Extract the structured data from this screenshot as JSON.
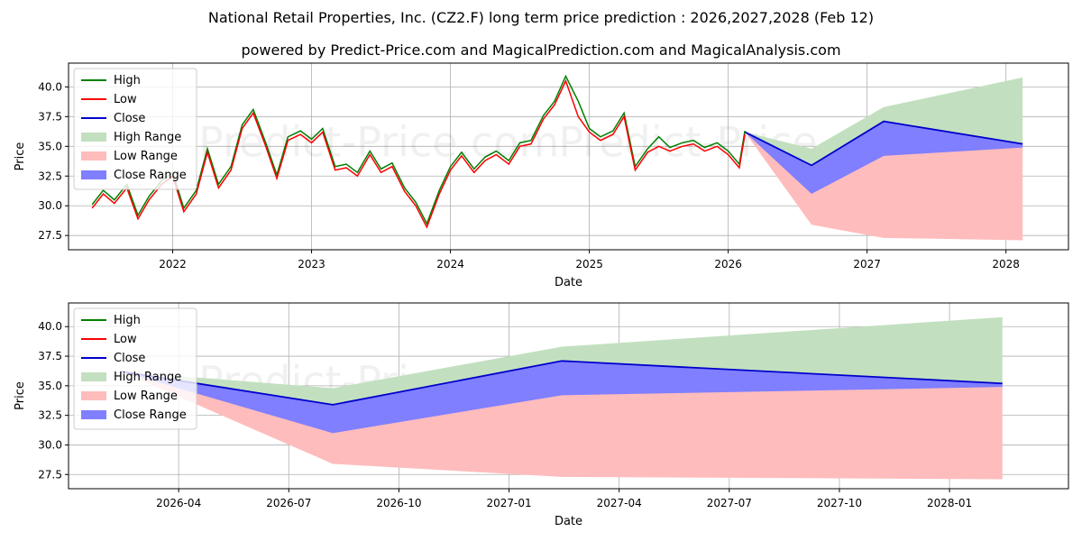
{
  "title": "National Retail Properties, Inc. (CZ2.F) long term price prediction : 2026,2027,2028 (Feb 12)",
  "subtitle": "powered by Predict-Price.com and MagicalPrediction.com and MagicalAnalysis.com",
  "watermark": "Predict-Price.com",
  "colors": {
    "high": "#008000",
    "low": "#ff0000",
    "close": "#0000cc",
    "high_range": "#c2e0bf",
    "low_range": "#ffbcbc",
    "close_range": "#7f7fff",
    "grid": "#b0b0b0"
  },
  "chart_data": [
    {
      "type": "line",
      "name": "top",
      "xlabel": "Date",
      "ylabel": "Price",
      "xlim": [
        2021.25,
        2028.45
      ],
      "ylim": [
        26.3,
        42.0
      ],
      "xticks": [
        2022,
        2023,
        2024,
        2025,
        2026,
        2027,
        2028
      ],
      "xtick_labels": [
        "2022",
        "2023",
        "2024",
        "2025",
        "2026",
        "2027",
        "2028"
      ],
      "yticks": [
        27.5,
        30.0,
        32.5,
        35.0,
        37.5,
        40.0
      ],
      "ytick_labels": [
        "27.5",
        "30.0",
        "32.5",
        "35.0",
        "37.5",
        "40.0"
      ],
      "legend": [
        "High",
        "Low",
        "Close",
        "High Range",
        "Low Range",
        "Close Range"
      ],
      "legend_position": "upper-left",
      "history": {
        "x": [
          2021.42,
          2021.5,
          2021.58,
          2021.67,
          2021.75,
          2021.83,
          2021.92,
          2022.0,
          2022.08,
          2022.17,
          2022.25,
          2022.33,
          2022.42,
          2022.5,
          2022.58,
          2022.67,
          2022.75,
          2022.83,
          2022.92,
          2023.0,
          2023.08,
          2023.17,
          2023.25,
          2023.33,
          2023.42,
          2023.5,
          2023.58,
          2023.67,
          2023.75,
          2023.83,
          2023.92,
          2024.0,
          2024.08,
          2024.17,
          2024.25,
          2024.33,
          2024.42,
          2024.5,
          2024.58,
          2024.67,
          2024.75,
          2024.83,
          2024.92,
          2025.0,
          2025.08,
          2025.17,
          2025.25,
          2025.33,
          2025.42,
          2025.5,
          2025.58,
          2025.67,
          2025.75,
          2025.83,
          2025.92,
          2026.0,
          2026.08,
          2026.12
        ],
        "low": [
          29.8,
          31.0,
          30.2,
          31.5,
          28.9,
          30.5,
          31.8,
          32.5,
          29.5,
          31.0,
          34.5,
          31.5,
          33.0,
          36.5,
          37.8,
          35.0,
          32.3,
          35.5,
          36.0,
          35.3,
          36.2,
          33.0,
          33.2,
          32.5,
          34.3,
          32.8,
          33.3,
          31.2,
          30.0,
          28.2,
          31.0,
          33.0,
          34.2,
          32.8,
          33.8,
          34.3,
          33.5,
          35.0,
          35.2,
          37.3,
          38.5,
          40.5,
          37.5,
          36.2,
          35.5,
          36.0,
          37.5,
          33.0,
          34.5,
          35.0,
          34.6,
          35.0,
          35.2,
          34.6,
          35.0,
          34.3,
          33.2,
          36.0
        ],
        "high": [
          30.1,
          31.3,
          30.5,
          31.8,
          29.2,
          30.8,
          32.1,
          32.8,
          29.8,
          31.3,
          34.8,
          31.8,
          33.3,
          36.8,
          38.1,
          35.3,
          32.6,
          35.8,
          36.3,
          35.6,
          36.5,
          33.3,
          33.5,
          32.8,
          34.6,
          33.1,
          33.6,
          31.5,
          30.3,
          28.5,
          31.3,
          33.3,
          34.5,
          33.1,
          34.1,
          34.6,
          33.8,
          35.3,
          35.5,
          37.6,
          38.8,
          40.9,
          38.8,
          36.5,
          35.8,
          36.3,
          37.8,
          33.3,
          34.8,
          35.8,
          34.9,
          35.3,
          35.5,
          34.9,
          35.3,
          34.6,
          33.5,
          36.3
        ]
      },
      "forecast": {
        "x": [
          2026.12,
          2026.6,
          2027.12,
          2028.12
        ],
        "close": [
          36.2,
          33.4,
          37.1,
          35.2
        ],
        "high_range": [
          [
            36.2,
            36.2
          ],
          [
            34.8,
            33.4
          ],
          [
            38.3,
            37.1
          ],
          [
            40.8,
            35.2
          ]
        ],
        "low_range": [
          [
            36.2,
            36.2
          ],
          [
            28.4,
            33.4
          ],
          [
            27.3,
            37.1
          ],
          [
            27.1,
            35.2
          ]
        ],
        "close_range": [
          [
            36.2,
            36.2
          ],
          [
            31.0,
            33.4
          ],
          [
            34.2,
            37.1
          ],
          [
            34.9,
            35.2
          ]
        ]
      }
    },
    {
      "type": "line",
      "name": "bottom",
      "xlabel": "Date",
      "ylabel": "Price",
      "xlim": [
        2026.0,
        2028.27
      ],
      "ylim": [
        26.3,
        42.0
      ],
      "xticks": [
        2026.25,
        2026.5,
        2026.75,
        2027.0,
        2027.25,
        2027.5,
        2027.75,
        2028.0
      ],
      "xtick_labels": [
        "2026-04",
        "2026-07",
        "2026-10",
        "2027-01",
        "2027-04",
        "2027-07",
        "2027-10",
        "2028-01"
      ],
      "yticks": [
        27.5,
        30.0,
        32.5,
        35.0,
        37.5,
        40.0
      ],
      "ytick_labels": [
        "27.5",
        "30.0",
        "32.5",
        "35.0",
        "37.5",
        "40.0"
      ],
      "legend": [
        "High",
        "Low",
        "Close",
        "High Range",
        "Low Range",
        "Close Range"
      ],
      "legend_position": "upper-left",
      "forecast": {
        "x": [
          2026.12,
          2026.6,
          2027.12,
          2028.12
        ],
        "close": [
          36.2,
          33.4,
          37.1,
          35.2
        ],
        "high_range": [
          [
            36.2,
            36.2
          ],
          [
            34.8,
            33.4
          ],
          [
            38.3,
            37.1
          ],
          [
            40.8,
            35.2
          ]
        ],
        "low_range": [
          [
            36.2,
            36.2
          ],
          [
            28.4,
            33.4
          ],
          [
            27.3,
            37.1
          ],
          [
            27.1,
            35.2
          ]
        ],
        "close_range": [
          [
            36.2,
            36.2
          ],
          [
            31.0,
            33.4
          ],
          [
            34.2,
            37.1
          ],
          [
            34.9,
            35.2
          ]
        ]
      }
    }
  ]
}
